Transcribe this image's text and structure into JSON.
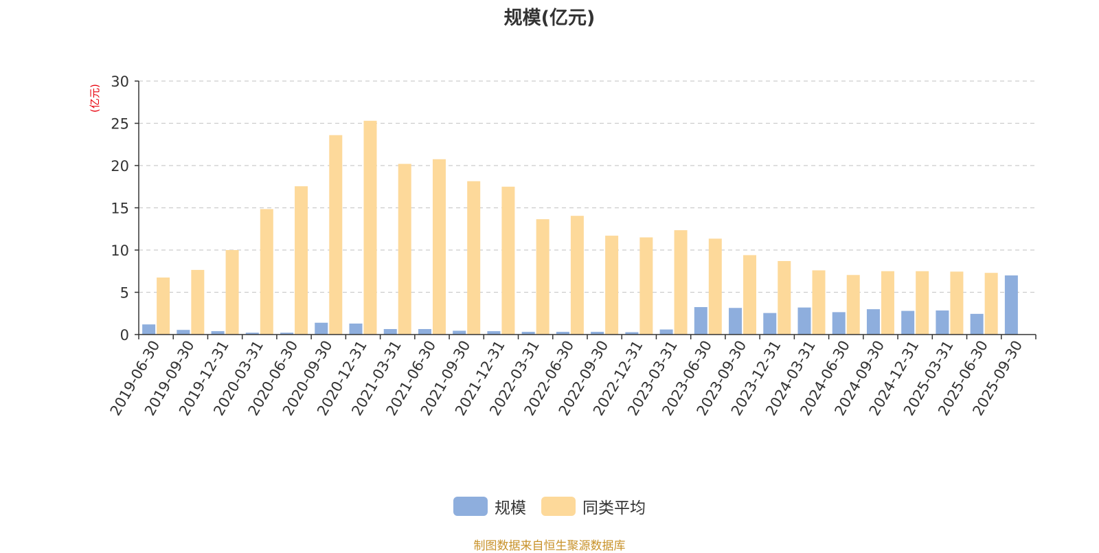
{
  "chart_data": {
    "type": "bar",
    "title": "规模(亿元)",
    "ylabel": "(亿元)",
    "xlabel": "",
    "ylim": [
      0,
      30
    ],
    "yticks": [
      0,
      5,
      10,
      15,
      20,
      25,
      30
    ],
    "grid": true,
    "legend_position": "bottom",
    "categories": [
      "2019-06-30",
      "2019-09-30",
      "2019-12-31",
      "2020-03-31",
      "2020-06-30",
      "2020-09-30",
      "2020-12-31",
      "2021-03-31",
      "2021-06-30",
      "2021-09-30",
      "2021-12-31",
      "2022-03-31",
      "2022-06-30",
      "2022-09-30",
      "2022-12-31",
      "2023-03-31",
      "2023-06-30",
      "2023-09-30",
      "2023-12-31",
      "2024-03-31",
      "2024-06-30",
      "2024-09-30",
      "2024-12-31",
      "2025-03-31",
      "2025-06-30",
      "2025-09-30"
    ],
    "series": [
      {
        "name": "规模",
        "color": "#8eaedd",
        "values": [
          1.2,
          0.55,
          0.4,
          0.22,
          0.22,
          1.4,
          1.3,
          0.65,
          0.65,
          0.45,
          0.4,
          0.32,
          0.32,
          0.32,
          0.28,
          0.6,
          3.25,
          3.15,
          2.55,
          3.2,
          2.65,
          3.0,
          2.8,
          2.85,
          2.45,
          7.0
        ]
      },
      {
        "name": "同类平均",
        "color": "#fdd99a",
        "values": [
          6.75,
          7.65,
          10.0,
          14.85,
          17.55,
          23.6,
          25.3,
          20.2,
          20.75,
          18.15,
          17.5,
          13.65,
          14.05,
          11.7,
          11.5,
          12.35,
          11.35,
          9.4,
          8.7,
          7.6,
          7.05,
          7.5,
          7.5,
          7.45,
          7.3,
          null
        ]
      }
    ]
  },
  "footer": {
    "source": "制图数据来自恒生聚源数据库"
  }
}
